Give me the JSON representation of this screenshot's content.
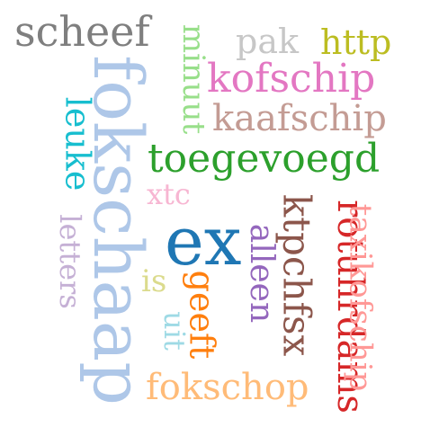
{
  "words": [
    {
      "text": "ex",
      "color": "#1f77b4"
    },
    {
      "text": "fokschaap",
      "color": "#aec7e8"
    },
    {
      "text": "toegevoegd",
      "color": "#2ca02c"
    },
    {
      "text": "rotuhrdams",
      "color": "#d62728"
    },
    {
      "text": "ktpchfsx",
      "color": "#8c564b"
    },
    {
      "text": "scheef",
      "color": "#7f7f7f"
    },
    {
      "text": "kofschip",
      "color": "#e377c2"
    },
    {
      "text": "kaafschip",
      "color": "#c49c94"
    },
    {
      "text": "taxikofschip",
      "color": "#ff9896"
    },
    {
      "text": "fokschop",
      "color": "#ffbb78"
    },
    {
      "text": "leuke",
      "color": "#17becf"
    },
    {
      "text": "minuut",
      "color": "#98df8a"
    },
    {
      "text": "alleen",
      "color": "#9467bd"
    },
    {
      "text": "geeft",
      "color": "#ff7f0e"
    },
    {
      "text": "http",
      "color": "#bcbd22"
    },
    {
      "text": "pak",
      "color": "#c7c7c7"
    },
    {
      "text": "letters",
      "color": "#c5b0d5"
    },
    {
      "text": "xtc",
      "color": "#f7b6d2"
    },
    {
      "text": "uit",
      "color": "#9edae5"
    },
    {
      "text": "is",
      "color": "#dbdb8d"
    }
  ]
}
